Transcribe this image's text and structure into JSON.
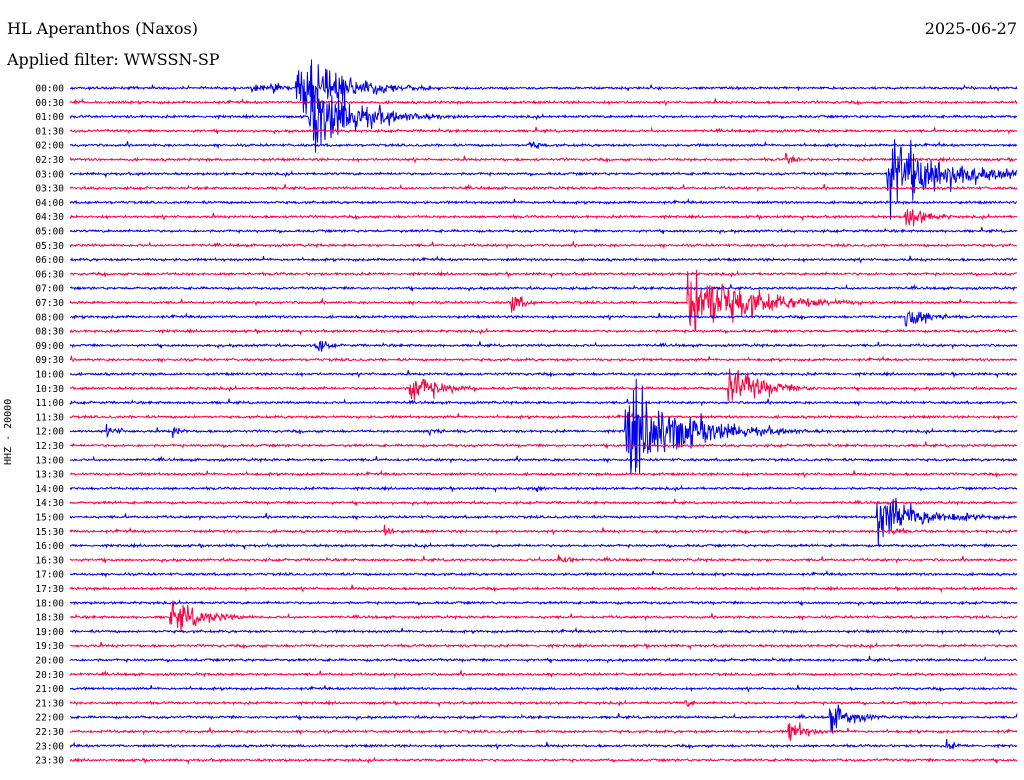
{
  "header": {
    "station": "HL Aperanthos (Naxos)",
    "date": "2025-06-27",
    "filter": "Applied filter: WWSSN-SP"
  },
  "chart_data": {
    "type": "line",
    "title": "HL Aperanthos (Naxos)",
    "ylabel": "HHZ - 20000",
    "xlabel": "",
    "trace_colors": [
      "#0000ee",
      "#ff0040"
    ],
    "rows": [
      "00:00",
      "00:30",
      "01:00",
      "01:30",
      "02:00",
      "02:30",
      "03:00",
      "03:30",
      "04:00",
      "04:30",
      "05:00",
      "05:30",
      "06:00",
      "06:30",
      "07:00",
      "07:30",
      "08:00",
      "08:30",
      "09:00",
      "09:30",
      "10:00",
      "10:30",
      "11:00",
      "11:30",
      "12:00",
      "12:30",
      "13:00",
      "13:30",
      "14:00",
      "14:30",
      "15:00",
      "15:30",
      "16:00",
      "16:30",
      "17:00",
      "17:30",
      "18:00",
      "18:30",
      "19:00",
      "19:30",
      "20:00",
      "20:30",
      "21:00",
      "21:30",
      "22:00",
      "22:30",
      "23:00",
      "23:30"
    ],
    "row_minutes": 30,
    "events": [
      {
        "row": "00:00",
        "minute": 7.2,
        "amplitude": 24,
        "duration": 4
      },
      {
        "row": "00:00",
        "minute": 6.4,
        "amplitude": 5,
        "duration": 1
      },
      {
        "row": "00:00",
        "minute": 5.8,
        "amplitude": 4,
        "duration": 1
      },
      {
        "row": "00:00",
        "minute": 7.8,
        "amplitude": 4,
        "duration": 1
      },
      {
        "row": "01:00",
        "minute": 7.6,
        "amplitude": 30,
        "duration": 4
      },
      {
        "row": "02:00",
        "minute": 14.6,
        "amplitude": 4,
        "duration": 1
      },
      {
        "row": "02:30",
        "minute": 22.7,
        "amplitude": 4,
        "duration": 1.5
      },
      {
        "row": "03:00",
        "minute": 25.9,
        "amplitude": 30,
        "duration": 5
      },
      {
        "row": "04:30",
        "minute": 26.5,
        "amplitude": 9,
        "duration": 2
      },
      {
        "row": "07:30",
        "minute": 19.6,
        "amplitude": 28,
        "duration": 5
      },
      {
        "row": "07:30",
        "minute": 14.0,
        "amplitude": 9,
        "duration": 1
      },
      {
        "row": "08:00",
        "minute": 26.5,
        "amplitude": 10,
        "duration": 2
      },
      {
        "row": "09:00",
        "minute": 7.8,
        "amplitude": 6,
        "duration": 1
      },
      {
        "row": "10:30",
        "minute": 10.8,
        "amplitude": 12,
        "duration": 2.5
      },
      {
        "row": "10:30",
        "minute": 20.9,
        "amplitude": 16,
        "duration": 3
      },
      {
        "row": "12:00",
        "minute": 17.6,
        "amplitude": 36,
        "duration": 5
      },
      {
        "row": "12:00",
        "minute": 1.2,
        "amplitude": 4,
        "duration": 1.5
      },
      {
        "row": "12:00",
        "minute": 3.3,
        "amplitude": 4,
        "duration": 1
      },
      {
        "row": "12:00",
        "minute": 11.4,
        "amplitude": 4,
        "duration": 1
      },
      {
        "row": "14:00",
        "minute": 14.8,
        "amplitude": 5,
        "duration": 0.5
      },
      {
        "row": "15:00",
        "minute": 25.6,
        "amplitude": 18,
        "duration": 4
      },
      {
        "row": "15:30",
        "minute": 26.1,
        "amplitude": 4,
        "duration": 1
      },
      {
        "row": "15:30",
        "minute": 10.0,
        "amplitude": 8,
        "duration": 0.5
      },
      {
        "row": "16:30",
        "minute": 15.5,
        "amplitude": 6,
        "duration": 1
      },
      {
        "row": "18:30",
        "minute": 3.2,
        "amplitude": 12,
        "duration": 3
      },
      {
        "row": "21:30",
        "minute": 19.5,
        "amplitude": 3,
        "duration": 1
      },
      {
        "row": "22:00",
        "minute": 24.1,
        "amplitude": 11,
        "duration": 2
      },
      {
        "row": "22:30",
        "minute": 22.8,
        "amplitude": 9,
        "duration": 1.5
      },
      {
        "row": "23:00",
        "minute": 27.8,
        "amplitude": 4,
        "duration": 1
      }
    ]
  }
}
